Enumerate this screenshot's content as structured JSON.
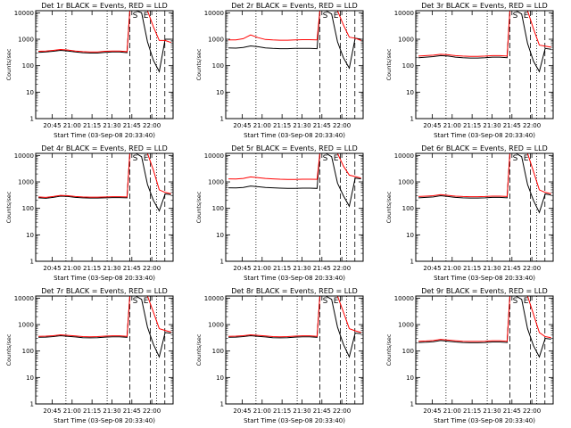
{
  "chart_data": [
    {
      "type": "line",
      "title": "Det 1r BLACK = Events, RED = LLD",
      "xlabel": "Start Time (03-Sep-08 20:33:40)",
      "ylabel": "Counts/sec",
      "x_ticks": [
        "20:45",
        "21:00",
        "21:15",
        "21:30",
        "21:45",
        "22:00"
      ],
      "y_ticks": [
        "1",
        "10",
        "100",
        "1000",
        "10000"
      ],
      "ylim": [
        1,
        12000
      ],
      "y_scale": "log",
      "series": [
        {
          "color": "#000000",
          "values": [
            320,
            330,
            350,
            380,
            360,
            330,
            310,
            300,
            300,
            320,
            330,
            330,
            310,
            12000,
            12000,
            10000,
            800,
            160,
            60,
            1000,
            1000
          ]
        },
        {
          "color": "#ff0000",
          "values": [
            350,
            360,
            380,
            410,
            390,
            360,
            340,
            330,
            330,
            350,
            360,
            360,
            340,
            12000,
            12000,
            12000,
            12000,
            3000,
            900,
            900,
            750
          ]
        }
      ]
    },
    {
      "type": "line",
      "title": "Det 2r BLACK = Events, RED = LLD",
      "xlabel": "Start Time (03-Sep-08 20:33:40)",
      "ylabel": "Counts/sec",
      "x_ticks": [
        "20:45",
        "21:00",
        "21:15",
        "21:30",
        "21:45",
        "22:00"
      ],
      "y_ticks": [
        "1",
        "10",
        "100",
        "1000",
        "10000"
      ],
      "ylim": [
        1,
        12000
      ],
      "y_scale": "log",
      "series": [
        {
          "color": "#000000",
          "values": [
            470,
            460,
            490,
            560,
            520,
            470,
            450,
            440,
            440,
            450,
            450,
            450,
            440,
            12000,
            12000,
            9000,
            800,
            200,
            80,
            1100,
            1000
          ]
        },
        {
          "color": "#ff0000",
          "values": [
            950,
            950,
            1050,
            1450,
            1150,
            980,
            940,
            920,
            920,
            950,
            960,
            960,
            950,
            12000,
            12000,
            12000,
            12000,
            3500,
            1200,
            1100,
            900
          ]
        }
      ]
    },
    {
      "type": "line",
      "title": "Det 3r BLACK = Events, RED = LLD",
      "xlabel": "Start Time (03-Sep-08 20:33:40)",
      "ylabel": "Counts/sec",
      "x_ticks": [
        "20:45",
        "21:00",
        "21:15",
        "21:30",
        "21:45",
        "22:00"
      ],
      "y_ticks": [
        "1",
        "10",
        "100",
        "1000",
        "10000"
      ],
      "ylim": [
        1,
        12000
      ],
      "y_scale": "log",
      "series": [
        {
          "color": "#000000",
          "values": [
            200,
            210,
            220,
            240,
            230,
            210,
            200,
            195,
            195,
            200,
            210,
            210,
            200,
            12000,
            12000,
            9000,
            700,
            150,
            60,
            450,
            420
          ]
        },
        {
          "color": "#ff0000",
          "values": [
            230,
            240,
            250,
            270,
            260,
            240,
            230,
            225,
            225,
            230,
            240,
            240,
            230,
            12000,
            12000,
            12000,
            12000,
            2500,
            600,
            550,
            500
          ]
        }
      ]
    },
    {
      "type": "line",
      "title": "Det 4r BLACK = Events, RED = LLD",
      "xlabel": "Start Time (03-Sep-08 20:33:40)",
      "ylabel": "Counts/sec",
      "x_ticks": [
        "20:45",
        "21:00",
        "21:15",
        "21:30",
        "21:45",
        "22:00"
      ],
      "y_ticks": [
        "1",
        "10",
        "100",
        "1000",
        "10000"
      ],
      "ylim": [
        1,
        12000
      ],
      "y_scale": "log",
      "series": [
        {
          "color": "#000000",
          "values": [
            250,
            240,
            260,
            290,
            280,
            260,
            250,
            245,
            245,
            250,
            255,
            255,
            250,
            12000,
            12000,
            9000,
            800,
            200,
            80,
            350,
            330
          ]
        },
        {
          "color": "#ff0000",
          "values": [
            270,
            260,
            280,
            310,
            300,
            280,
            270,
            265,
            265,
            270,
            275,
            275,
            270,
            12000,
            12000,
            12000,
            12000,
            2800,
            500,
            400,
            360
          ]
        }
      ]
    },
    {
      "type": "line",
      "title": "Det 5r BLACK = Events, RED = LLD",
      "xlabel": "Start Time (03-Sep-08 20:33:40)",
      "ylabel": "Counts/sec",
      "x_ticks": [
        "20:45",
        "21:00",
        "21:15",
        "21:30",
        "21:45",
        "22:00"
      ],
      "y_ticks": [
        "1",
        "10",
        "100",
        "1000",
        "10000"
      ],
      "ylim": [
        1,
        12000
      ],
      "y_scale": "log",
      "series": [
        {
          "color": "#000000",
          "values": [
            600,
            590,
            620,
            700,
            660,
            620,
            600,
            580,
            570,
            570,
            580,
            580,
            570,
            12000,
            12000,
            9000,
            900,
            300,
            120,
            1400,
            1300
          ]
        },
        {
          "color": "#ff0000",
          "values": [
            1300,
            1280,
            1350,
            1550,
            1450,
            1350,
            1300,
            1260,
            1240,
            1240,
            1260,
            1260,
            1250,
            12000,
            12000,
            12000,
            12000,
            4000,
            1800,
            1600,
            1400
          ]
        }
      ]
    },
    {
      "type": "line",
      "title": "Det 6r BLACK = Events, RED = LLD",
      "xlabel": "Start Time (03-Sep-08 20:33:40)",
      "ylabel": "Counts/sec",
      "x_ticks": [
        "20:45",
        "21:00",
        "21:15",
        "21:30",
        "21:45",
        "22:00"
      ],
      "y_ticks": [
        "1",
        "10",
        "100",
        "1000",
        "10000"
      ],
      "ylim": [
        1,
        12000
      ],
      "y_scale": "log",
      "series": [
        {
          "color": "#000000",
          "values": [
            250,
            260,
            270,
            300,
            280,
            260,
            250,
            245,
            245,
            250,
            260,
            260,
            250,
            12000,
            12000,
            9000,
            800,
            200,
            70,
            350,
            320
          ]
        },
        {
          "color": "#ff0000",
          "values": [
            280,
            290,
            300,
            330,
            310,
            290,
            280,
            275,
            275,
            280,
            290,
            290,
            280,
            12000,
            12000,
            12000,
            12000,
            2500,
            500,
            400,
            360
          ]
        }
      ]
    },
    {
      "type": "line",
      "title": "Det 7r BLACK = Events, RED = LLD",
      "xlabel": "Start Time (03-Sep-08 20:33:40)",
      "ylabel": "Counts/sec",
      "x_ticks": [
        "20:45",
        "21:00",
        "21:15",
        "21:30",
        "21:45",
        "22:00"
      ],
      "y_ticks": [
        "1",
        "10",
        "100",
        "1000",
        "10000"
      ],
      "ylim": [
        1,
        12000
      ],
      "y_scale": "log",
      "series": [
        {
          "color": "#000000",
          "values": [
            330,
            335,
            350,
            380,
            360,
            340,
            320,
            315,
            320,
            335,
            345,
            345,
            330,
            12000,
            12000,
            9000,
            800,
            180,
            60,
            500,
            470
          ]
        },
        {
          "color": "#ff0000",
          "values": [
            360,
            365,
            380,
            410,
            390,
            370,
            350,
            345,
            350,
            365,
            375,
            375,
            360,
            12000,
            12000,
            12000,
            12000,
            3000,
            700,
            600,
            520
          ]
        }
      ]
    },
    {
      "type": "line",
      "title": "Det 8r BLACK = Events, RED = LLD",
      "xlabel": "Start Time (03-Sep-08 20:33:40)",
      "ylabel": "Counts/sec",
      "x_ticks": [
        "20:45",
        "21:00",
        "21:15",
        "21:30",
        "21:45",
        "22:00"
      ],
      "y_ticks": [
        "1",
        "10",
        "100",
        "1000",
        "10000"
      ],
      "ylim": [
        1,
        12000
      ],
      "y_scale": "log",
      "series": [
        {
          "color": "#000000",
          "values": [
            330,
            335,
            350,
            380,
            360,
            340,
            320,
            315,
            320,
            335,
            345,
            345,
            330,
            12000,
            12000,
            9000,
            800,
            180,
            60,
            480,
            450
          ]
        },
        {
          "color": "#ff0000",
          "values": [
            360,
            365,
            380,
            410,
            390,
            370,
            350,
            345,
            350,
            365,
            375,
            375,
            360,
            12000,
            12000,
            12000,
            12000,
            3000,
            700,
            580,
            500
          ]
        }
      ]
    },
    {
      "type": "line",
      "title": "Det 9r BLACK = Events, RED = LLD",
      "xlabel": "Start Time (03-Sep-08 20:33:40)",
      "ylabel": "Counts/sec",
      "x_ticks": [
        "20:45",
        "21:00",
        "21:15",
        "21:30",
        "21:45",
        "22:00"
      ],
      "y_ticks": [
        "1",
        "10",
        "100",
        "1000",
        "10000"
      ],
      "ylim": [
        1,
        12000
      ],
      "y_scale": "log",
      "series": [
        {
          "color": "#000000",
          "values": [
            210,
            215,
            225,
            250,
            235,
            220,
            210,
            205,
            205,
            210,
            220,
            220,
            210,
            12000,
            12000,
            9000,
            700,
            160,
            60,
            300,
            280
          ]
        },
        {
          "color": "#ff0000",
          "values": [
            235,
            240,
            250,
            275,
            260,
            245,
            235,
            230,
            230,
            235,
            245,
            245,
            235,
            12000,
            12000,
            12000,
            12000,
            2500,
            500,
            350,
            320
          ]
        }
      ]
    }
  ],
  "markers": {
    "start": "S",
    "end": "E"
  }
}
